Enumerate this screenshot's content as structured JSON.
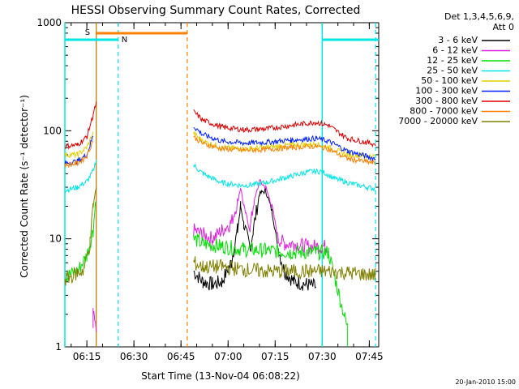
{
  "chart_data": {
    "type": "line",
    "title": "HESSI Observing Summary Count Rates, Corrected",
    "xlabel": "Start Time (13-Nov-04 06:08:22)",
    "ylabel": "Corrected Count Rate (s⁻¹ detector⁻¹)",
    "yscale": "log",
    "ylim": [
      1,
      1000
    ],
    "xlim": [
      "06:08",
      "07:48"
    ],
    "x_ticks": [
      "06:15",
      "06:30",
      "06:45",
      "07:00",
      "07:15",
      "07:30",
      "07:45"
    ],
    "y_ticks": [
      "1",
      "10",
      "100",
      "1000"
    ],
    "legend_header": [
      "Det 1,3,4,5,6,9,",
      "Att 0"
    ],
    "legend_position": "right",
    "footer": "20-Jan-2010 15:00",
    "annotations": {
      "saa_label": "S",
      "night_label": "N",
      "saa_color": "#ff8000",
      "night_color": "#00e5e5",
      "saa_bar_span": [
        "06:18",
        "06:47"
      ],
      "night_bar_spans": [
        [
          "06:08",
          "06:25"
        ],
        [
          "07:30",
          "07:48"
        ]
      ],
      "saa_lines": [
        "06:18",
        "06:47"
      ],
      "night_dashed_lines": [
        "06:25",
        "07:47"
      ],
      "night_solid_lines": [
        "06:08",
        "07:30"
      ],
      "data_gap": [
        "06:19",
        "06:48"
      ]
    },
    "series": [
      {
        "name": "3 - 6 keV",
        "color": "#000000",
        "points": [
          [
            "06:49",
            5
          ],
          [
            "06:52",
            4
          ],
          [
            "06:55",
            3.8
          ],
          [
            "06:58",
            4
          ],
          [
            "07:01",
            6
          ],
          [
            "07:03",
            12
          ],
          [
            "07:04",
            20
          ],
          [
            "07:05",
            14
          ],
          [
            "07:07",
            8
          ],
          [
            "07:08",
            12
          ],
          [
            "07:10",
            26
          ],
          [
            "07:12",
            28
          ],
          [
            "07:14",
            18
          ],
          [
            "07:16",
            8
          ],
          [
            "07:18",
            5
          ],
          [
            "07:21",
            4
          ],
          [
            "07:25",
            3.8
          ],
          [
            "07:28",
            3.6
          ]
        ]
      },
      {
        "name": "6 - 12 keV",
        "color": "#e020e0",
        "points": [
          [
            "06:17",
            1.4
          ],
          [
            "06:17",
            2
          ],
          [
            "06:18",
            1.4
          ],
          [
            "06:49",
            12
          ],
          [
            "06:52",
            11
          ],
          [
            "06:55",
            10
          ],
          [
            "06:58",
            12
          ],
          [
            "07:01",
            14
          ],
          [
            "07:03",
            22
          ],
          [
            "07:04",
            30
          ],
          [
            "07:05",
            20
          ],
          [
            "07:07",
            12
          ],
          [
            "07:08",
            20
          ],
          [
            "07:10",
            34
          ],
          [
            "07:12",
            30
          ],
          [
            "07:14",
            20
          ],
          [
            "07:16",
            10
          ],
          [
            "07:18",
            9
          ],
          [
            "07:21",
            9
          ],
          [
            "07:25",
            8.5
          ],
          [
            "07:30",
            8.5
          ],
          [
            "07:32",
            8.5
          ]
        ]
      },
      {
        "name": "12 - 25 keV",
        "color": "#00e000",
        "points": [
          [
            "06:08",
            4.5
          ],
          [
            "06:12",
            5
          ],
          [
            "06:15",
            7
          ],
          [
            "06:17",
            12
          ],
          [
            "06:18",
            26
          ],
          [
            "06:49",
            10
          ],
          [
            "06:52",
            9
          ],
          [
            "06:58",
            8.5
          ],
          [
            "07:05",
            8
          ],
          [
            "07:12",
            7.8
          ],
          [
            "07:20",
            7.5
          ],
          [
            "07:28",
            7.5
          ],
          [
            "07:32",
            7.5
          ],
          [
            "07:38",
            1.5
          ],
          [
            "07:38",
            1
          ]
        ]
      },
      {
        "name": "25 - 50 keV",
        "color": "#00e5e5",
        "points": [
          [
            "06:08",
            28
          ],
          [
            "06:12",
            30
          ],
          [
            "06:15",
            34
          ],
          [
            "06:17",
            42
          ],
          [
            "06:18",
            55
          ],
          [
            "06:49",
            48
          ],
          [
            "06:52",
            40
          ],
          [
            "06:58",
            33
          ],
          [
            "07:05",
            31
          ],
          [
            "07:12",
            33
          ],
          [
            "07:20",
            38
          ],
          [
            "07:26",
            42
          ],
          [
            "07:30",
            42
          ],
          [
            "07:34",
            36
          ],
          [
            "07:40",
            32
          ],
          [
            "07:47",
            29
          ]
        ]
      },
      {
        "name": "50 - 100 keV",
        "color": "#e0d000",
        "points": [
          [
            "06:08",
            60
          ],
          [
            "06:12",
            60
          ],
          [
            "06:15",
            70
          ],
          [
            "06:17",
            95
          ],
          [
            "06:49",
            95
          ],
          [
            "06:52",
            80
          ],
          [
            "06:58",
            70
          ],
          [
            "07:05",
            68
          ],
          [
            "07:12",
            70
          ],
          [
            "07:20",
            74
          ],
          [
            "07:28",
            75
          ],
          [
            "07:32",
            70
          ],
          [
            "07:38",
            60
          ],
          [
            "07:47",
            58
          ]
        ]
      },
      {
        "name": "100 - 300 keV",
        "color": "#0020ff",
        "points": [
          [
            "06:08",
            50
          ],
          [
            "06:12",
            52
          ],
          [
            "06:15",
            60
          ],
          [
            "06:17",
            90
          ],
          [
            "06:49",
            110
          ],
          [
            "06:52",
            92
          ],
          [
            "06:58",
            80
          ],
          [
            "07:05",
            77
          ],
          [
            "07:12",
            78
          ],
          [
            "07:20",
            82
          ],
          [
            "07:28",
            85
          ],
          [
            "07:32",
            80
          ],
          [
            "07:38",
            65
          ],
          [
            "07:47",
            55
          ]
        ]
      },
      {
        "name": "300 - 800 keV",
        "color": "#e00000",
        "points": [
          [
            "06:08",
            72
          ],
          [
            "06:12",
            74
          ],
          [
            "06:15",
            88
          ],
          [
            "06:17",
            140
          ],
          [
            "06:18",
            180
          ],
          [
            "06:49",
            150
          ],
          [
            "06:52",
            125
          ],
          [
            "06:58",
            108
          ],
          [
            "07:05",
            102
          ],
          [
            "07:12",
            104
          ],
          [
            "07:20",
            112
          ],
          [
            "07:28",
            120
          ],
          [
            "07:32",
            112
          ],
          [
            "07:38",
            85
          ],
          [
            "07:47",
            75
          ]
        ]
      },
      {
        "name": "800 - 7000 keV",
        "color": "#ff8000",
        "points": [
          [
            "06:08",
            48
          ],
          [
            "06:12",
            50
          ],
          [
            "06:15",
            58
          ],
          [
            "06:17",
            82
          ],
          [
            "06:49",
            88
          ],
          [
            "06:52",
            76
          ],
          [
            "06:58",
            68
          ],
          [
            "07:05",
            66
          ],
          [
            "07:12",
            67
          ],
          [
            "07:20",
            70
          ],
          [
            "07:28",
            72
          ],
          [
            "07:32",
            68
          ],
          [
            "07:38",
            55
          ],
          [
            "07:47",
            50
          ]
        ]
      },
      {
        "name": "7000 - 20000 keV",
        "color": "#808000",
        "points": [
          [
            "06:08",
            4.2
          ],
          [
            "06:10",
            4.5
          ],
          [
            "06:12",
            4.8
          ],
          [
            "06:14",
            5.2
          ],
          [
            "06:16",
            9
          ],
          [
            "06:17",
            20
          ],
          [
            "06:18",
            30
          ],
          [
            "06:49",
            6
          ],
          [
            "06:52",
            5.5
          ],
          [
            "06:58",
            5.5
          ],
          [
            "07:05",
            5.2
          ],
          [
            "07:12",
            5
          ],
          [
            "07:20",
            5
          ],
          [
            "07:28",
            5
          ],
          [
            "07:32",
            5
          ],
          [
            "07:40",
            4.8
          ],
          [
            "07:47",
            4.6
          ]
        ]
      }
    ]
  }
}
